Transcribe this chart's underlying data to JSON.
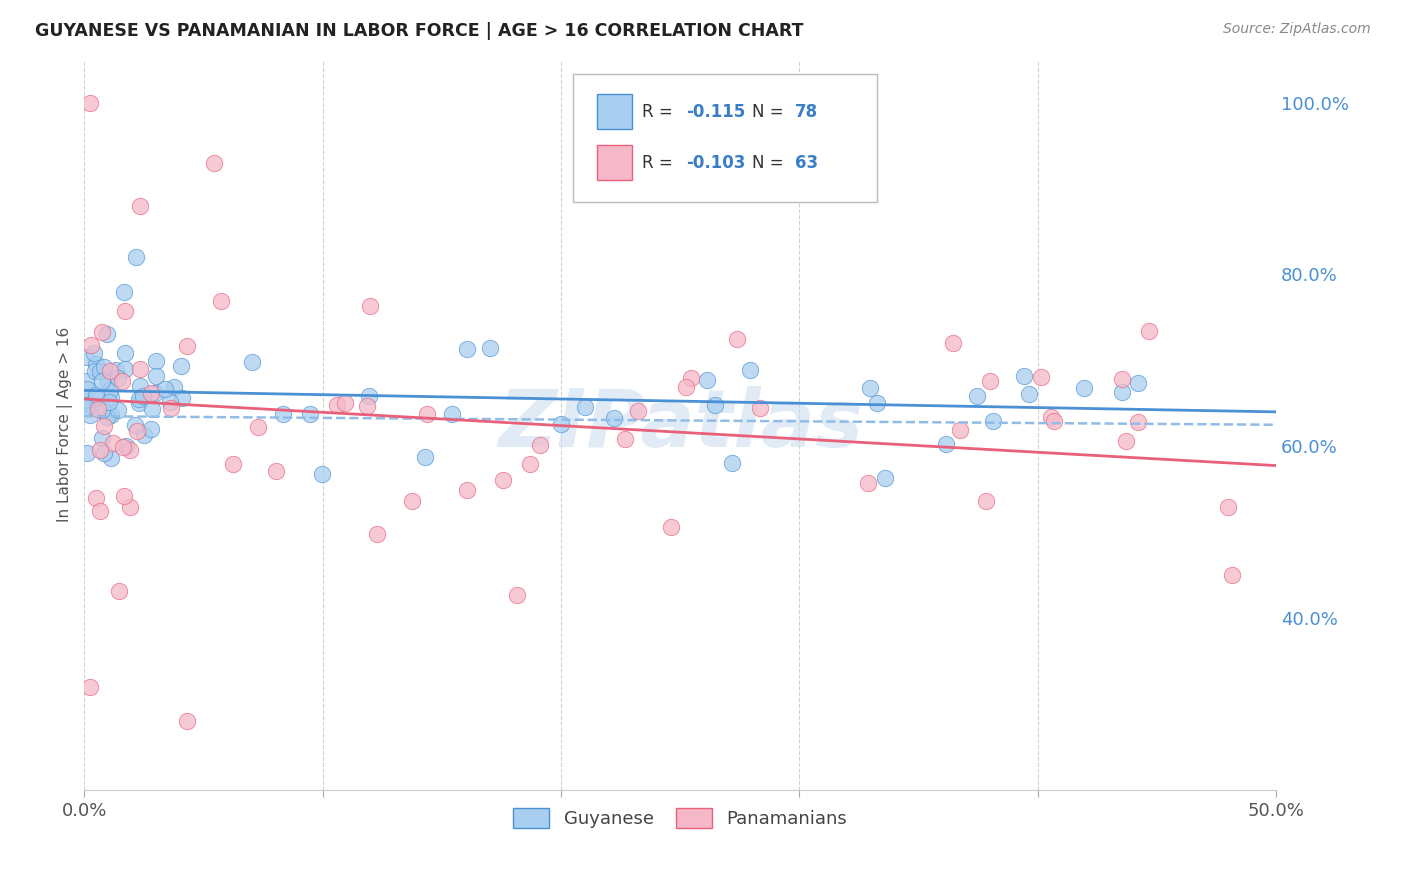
{
  "title": "GUYANESE VS PANAMANIAN IN LABOR FORCE | AGE > 16 CORRELATION CHART",
  "source": "Source: ZipAtlas.com",
  "ylabel_label": "In Labor Force | Age > 16",
  "xlim": [
    0.0,
    0.5
  ],
  "ylim": [
    0.2,
    1.05
  ],
  "x_ticks": [
    0.0,
    0.1,
    0.2,
    0.3,
    0.4,
    0.5
  ],
  "y_ticks_right": [
    0.4,
    0.6,
    0.8,
    1.0
  ],
  "y_tick_labels_right": [
    "40.0%",
    "60.0%",
    "80.0%",
    "100.0%"
  ],
  "blue_line_color": "#4a90d4",
  "pink_line_color": "#e8607a",
  "blue_dashed_color": "#90bce8",
  "guyanese_label": "Guyanese",
  "panamanian_label": "Panamanians",
  "title_color": "#333333",
  "blue_scatter_color": "#a8cef0",
  "pink_scatter_color": "#f5b8c8",
  "blue_N": 78,
  "pink_N": 63,
  "blue_intercept": 0.665,
  "blue_slope": -0.05,
  "pink_intercept": 0.655,
  "pink_slope": -0.155,
  "blue_dashed_intercept": 0.635,
  "blue_dashed_slope": -0.02,
  "watermark": "ZIPatlas",
  "watermark_color": "#c8dcf0",
  "background_color": "#ffffff",
  "grid_color": "#cccccc",
  "grid_style": "--"
}
